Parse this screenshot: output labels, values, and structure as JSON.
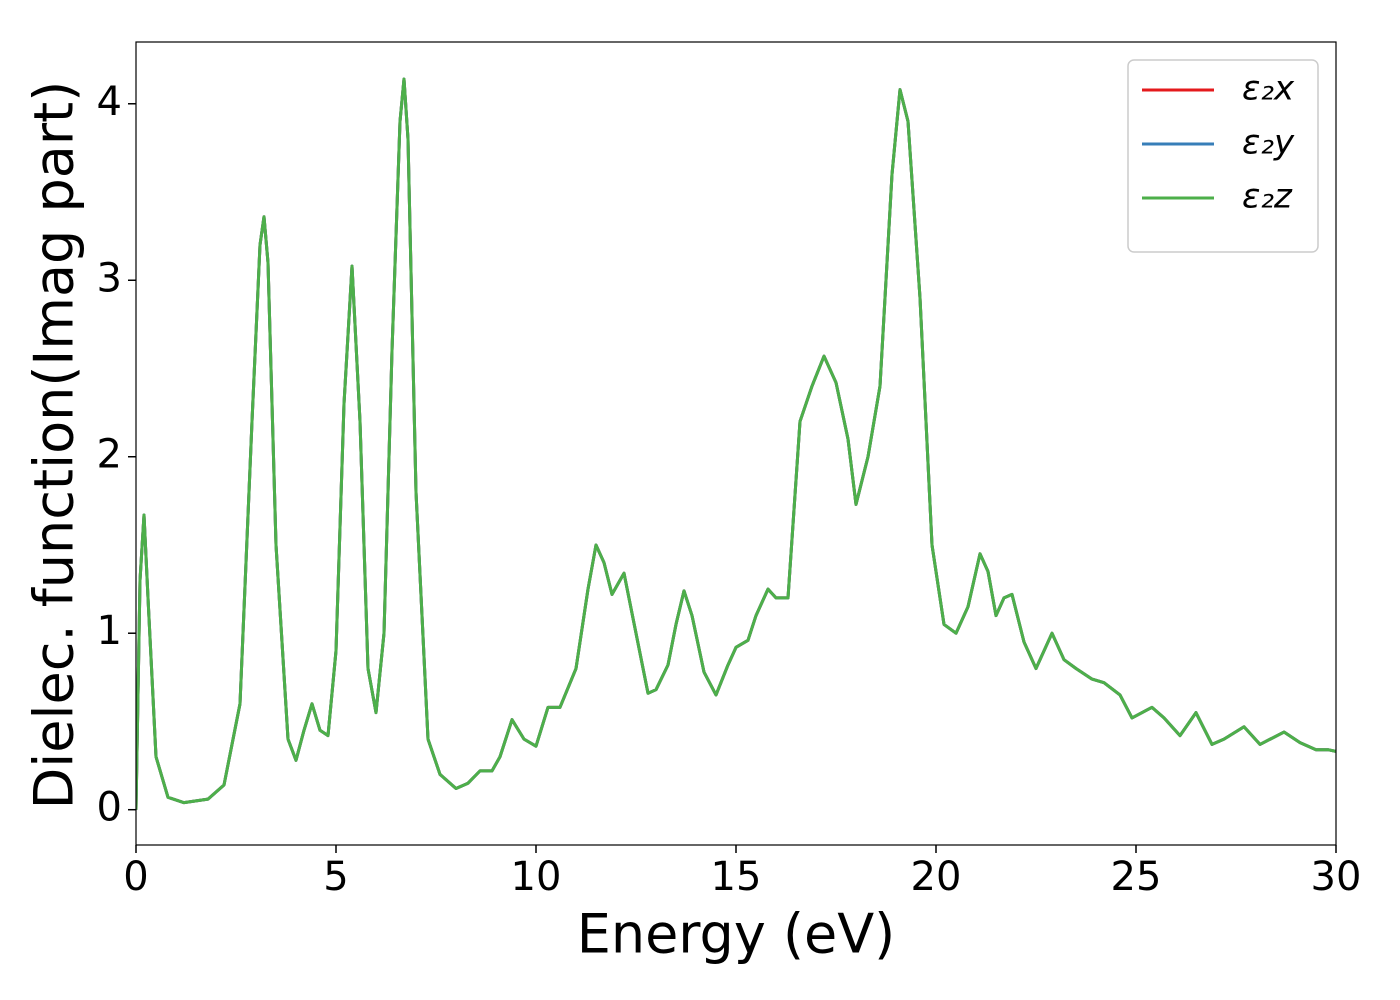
{
  "chart_data": {
    "type": "line",
    "xlabel": "Energy (eV)",
    "ylabel": "Dielec. function(Imag part)",
    "x": [
      0,
      0.1,
      0.2,
      0.3,
      0.5,
      0.8,
      1.2,
      1.8,
      2.2,
      2.6,
      2.9,
      3.1,
      3.2,
      3.3,
      3.5,
      3.8,
      4.0,
      4.2,
      4.4,
      4.6,
      4.8,
      5.0,
      5.2,
      5.4,
      5.6,
      5.8,
      6.0,
      6.2,
      6.4,
      6.6,
      6.7,
      6.8,
      7.0,
      7.3,
      7.6,
      8.0,
      8.3,
      8.6,
      8.9,
      9.1,
      9.4,
      9.7,
      10.0,
      10.3,
      10.6,
      11.0,
      11.3,
      11.5,
      11.7,
      11.9,
      12.2,
      12.5,
      12.8,
      13.0,
      13.3,
      13.5,
      13.7,
      13.9,
      14.2,
      14.5,
      14.8,
      15.0,
      15.3,
      15.5,
      15.8,
      16.0,
      16.3,
      16.6,
      16.9,
      17.2,
      17.5,
      17.8,
      18.0,
      18.3,
      18.6,
      18.9,
      19.1,
      19.3,
      19.6,
      19.9,
      20.2,
      20.5,
      20.8,
      21.1,
      21.3,
      21.5,
      21.7,
      21.9,
      22.2,
      22.5,
      22.9,
      23.2,
      23.5,
      23.9,
      24.2,
      24.6,
      24.9,
      25.4,
      25.7,
      26.1,
      26.5,
      26.9,
      27.2,
      27.7,
      28.1,
      28.7,
      29.1,
      29.5,
      29.8,
      30
    ],
    "series": [
      {
        "name": "ε₂x",
        "color": "#e41a1c",
        "values": [
          0,
          1.3,
          1.67,
          1.2,
          0.3,
          0.07,
          0.04,
          0.06,
          0.14,
          0.6,
          2.2,
          3.2,
          3.36,
          3.1,
          1.5,
          0.4,
          0.28,
          0.45,
          0.6,
          0.45,
          0.42,
          0.9,
          2.3,
          3.08,
          2.2,
          0.8,
          0.55,
          1.0,
          2.6,
          3.9,
          4.14,
          3.8,
          1.8,
          0.4,
          0.2,
          0.12,
          0.15,
          0.22,
          0.22,
          0.3,
          0.51,
          0.4,
          0.36,
          0.58,
          0.58,
          0.8,
          1.25,
          1.5,
          1.4,
          1.22,
          1.34,
          1.0,
          0.66,
          0.68,
          0.82,
          1.05,
          1.24,
          1.1,
          0.78,
          0.65,
          0.82,
          0.92,
          0.96,
          1.1,
          1.25,
          1.2,
          1.2,
          2.2,
          2.4,
          2.57,
          2.42,
          2.1,
          1.73,
          2.0,
          2.4,
          3.6,
          4.08,
          3.9,
          2.9,
          1.5,
          1.05,
          1.0,
          1.15,
          1.45,
          1.35,
          1.1,
          1.2,
          1.22,
          0.95,
          0.8,
          1.0,
          0.85,
          0.8,
          0.74,
          0.72,
          0.65,
          0.52,
          0.58,
          0.52,
          0.42,
          0.55,
          0.37,
          0.4,
          0.47,
          0.37,
          0.44,
          0.38,
          0.34,
          0.34,
          0.33
        ]
      },
      {
        "name": "ε₂y",
        "color": "#377eb8",
        "values": [
          0,
          1.3,
          1.67,
          1.2,
          0.3,
          0.07,
          0.04,
          0.06,
          0.14,
          0.6,
          2.2,
          3.2,
          3.36,
          3.1,
          1.5,
          0.4,
          0.28,
          0.45,
          0.6,
          0.45,
          0.42,
          0.9,
          2.3,
          3.08,
          2.2,
          0.8,
          0.55,
          1.0,
          2.6,
          3.9,
          4.14,
          3.8,
          1.8,
          0.4,
          0.2,
          0.12,
          0.15,
          0.22,
          0.22,
          0.3,
          0.51,
          0.4,
          0.36,
          0.58,
          0.58,
          0.8,
          1.25,
          1.5,
          1.4,
          1.22,
          1.34,
          1.0,
          0.66,
          0.68,
          0.82,
          1.05,
          1.24,
          1.1,
          0.78,
          0.65,
          0.82,
          0.92,
          0.96,
          1.1,
          1.25,
          1.2,
          1.2,
          2.2,
          2.4,
          2.57,
          2.42,
          2.1,
          1.73,
          2.0,
          2.4,
          3.6,
          4.08,
          3.9,
          2.9,
          1.5,
          1.05,
          1.0,
          1.15,
          1.45,
          1.35,
          1.1,
          1.2,
          1.22,
          0.95,
          0.8,
          1.0,
          0.85,
          0.8,
          0.74,
          0.72,
          0.65,
          0.52,
          0.58,
          0.52,
          0.42,
          0.55,
          0.37,
          0.4,
          0.47,
          0.37,
          0.44,
          0.38,
          0.34,
          0.34,
          0.33
        ]
      },
      {
        "name": "ε₂z",
        "color": "#4daf4a",
        "values": [
          0,
          1.3,
          1.67,
          1.2,
          0.3,
          0.07,
          0.04,
          0.06,
          0.14,
          0.6,
          2.2,
          3.2,
          3.36,
          3.1,
          1.5,
          0.4,
          0.28,
          0.45,
          0.6,
          0.45,
          0.42,
          0.9,
          2.3,
          3.08,
          2.2,
          0.8,
          0.55,
          1.0,
          2.6,
          3.9,
          4.14,
          3.8,
          1.8,
          0.4,
          0.2,
          0.12,
          0.15,
          0.22,
          0.22,
          0.3,
          0.51,
          0.4,
          0.36,
          0.58,
          0.58,
          0.8,
          1.25,
          1.5,
          1.4,
          1.22,
          1.34,
          1.0,
          0.66,
          0.68,
          0.82,
          1.05,
          1.24,
          1.1,
          0.78,
          0.65,
          0.82,
          0.92,
          0.96,
          1.1,
          1.25,
          1.2,
          1.2,
          2.2,
          2.4,
          2.57,
          2.42,
          2.1,
          1.73,
          2.0,
          2.4,
          3.6,
          4.08,
          3.9,
          2.9,
          1.5,
          1.05,
          1.0,
          1.15,
          1.45,
          1.35,
          1.1,
          1.2,
          1.22,
          0.95,
          0.8,
          1.0,
          0.85,
          0.8,
          0.74,
          0.72,
          0.65,
          0.52,
          0.58,
          0.52,
          0.42,
          0.55,
          0.37,
          0.4,
          0.47,
          0.37,
          0.44,
          0.38,
          0.34,
          0.34,
          0.33
        ]
      }
    ],
    "xlim": [
      0,
      30
    ],
    "xticks": [
      0,
      5,
      10,
      15,
      20,
      25,
      30
    ],
    "ylim": [
      -0.2,
      4.35
    ],
    "yticks": [
      0,
      1,
      2,
      3,
      4
    ],
    "grid": false,
    "legend": "upper right"
  }
}
